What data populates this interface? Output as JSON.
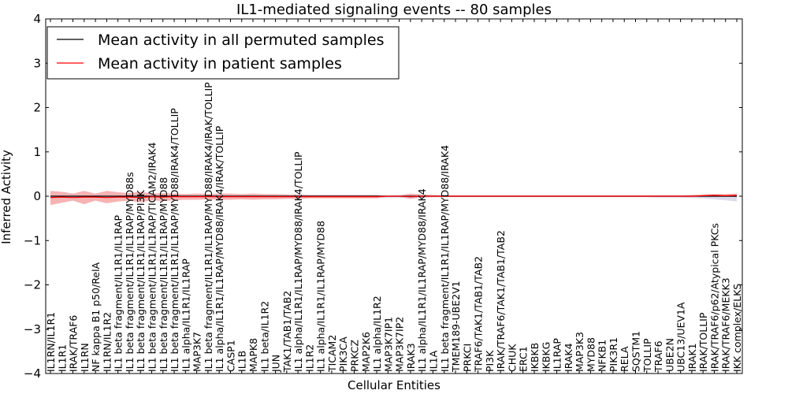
{
  "chart_data": {
    "type": "line",
    "title": "IL1-mediated signaling events -- 80 samples",
    "xlabel": "Cellular Entities",
    "ylabel": "Inferred Activity",
    "ylim": [
      -4,
      4
    ],
    "yticks": [
      -4,
      -3,
      -2,
      -1,
      0,
      1,
      2,
      3,
      4
    ],
    "ytick_labels": [
      "−4",
      "−3",
      "−2",
      "−1",
      "0",
      "1",
      "2",
      "3",
      "4"
    ],
    "legend_position": "top-left",
    "categories": [
      "IL1RN/IL1R1",
      "IL1R1",
      "IRAK/TRAF6",
      "IL1RN",
      "NF kappa B1 p50/RelA",
      "IL1RN/IL1R2",
      "IL1 beta fragment/IL1R1/IL1RAP",
      "IL1 beta fragment/IL1R1/IL1RAP/MYD88s",
      "IL1 beta fragment/IL1R1/IL1RAP/PI3K",
      "IL1 beta fragment/IL1R1/IL1RAP/TICAM2/IRAK4",
      "IL1 beta fragment/IL1R1/IL1RAP/MYD88",
      "IL1 beta fragment/IL1R1/IL1RAP/MYD88/IRAK4/TOLLIP",
      "IL1 alpha/IL1R1/IL1RAP",
      "MAP3K7",
      "IL1 beta fragment/IL1R1/IL1RAP/MYD88/IRAK4/IRAK/TOLLIP",
      "IL1 alpha/IL1R1/IL1RAP/MYD88/IRAK4/IRAK/TOLLIP",
      "CASP1",
      "IL1B",
      "MAPK8",
      "IL1 beta/IL1R2",
      "JUN",
      "TAK1/TAB1/TAB2",
      "IL1 alpha/IL1R1/IL1RAP/MYD88/IRAK4/TOLLIP",
      "IL1R2",
      "IL1 alpha/IL1R1/IL1RAP/MYD88",
      "TICAM2",
      "PIK3CA",
      "PRKCZ",
      "MAP2K6",
      "IL1 alpha/IL1R2",
      "MAP3K7IP1",
      "MAP3K7IP2",
      "IRAK3",
      "IL1 alpha/IL1R1/IL1RAP/MYD88/IRAK4",
      "IL1A",
      "IL1 beta fragment/IL1R1/IL1RAP/MYD88/IRAK4",
      "TMEM189-UBE2V1",
      "PRKCI",
      "TRAF6/TAK1/TAB1/TAB2",
      "PI3K",
      "IRAK/TRAF6/TAK1/TAB1/TAB2",
      "CHUK",
      "ERC1",
      "IKBKB",
      "IKBKG",
      "IL1RAP",
      "IRAK4",
      "MAP3K3",
      "MYD88",
      "NFKB1",
      "PIK3R1",
      "RELA",
      "SQSTM1",
      "TOLLIP",
      "TRAF6",
      "UBE2N",
      "UBC13/UEV1A",
      "IRAK1",
      "IRAK/TOLLIP",
      "IRAK/TRAF6/p62/Atypical PKCs",
      "IRAK/TRAF6/MEKK3",
      "IKK complex/ELKS"
    ],
    "series": [
      {
        "name": "Mean activity in all permuted samples",
        "color": "#000000",
        "values": [
          0.0,
          0.0,
          0.0,
          0.0,
          0.0,
          0.0,
          0.0,
          0.0,
          0.0,
          0.0,
          0.0,
          0.0,
          0.0,
          0.0,
          0.0,
          0.0,
          0.0,
          0.0,
          0.0,
          0.0,
          0.0,
          0.0,
          0.0,
          0.0,
          0.0,
          0.0,
          0.0,
          0.0,
          0.0,
          0.0,
          0.0,
          0.0,
          0.0,
          0.0,
          0.0,
          0.0,
          0.0,
          0.0,
          0.0,
          0.0,
          0.0,
          0.0,
          0.0,
          0.0,
          0.0,
          0.0,
          0.0,
          0.0,
          0.0,
          0.0,
          0.0,
          0.0,
          0.0,
          0.0,
          0.0,
          0.0,
          0.0,
          0.0,
          0.0,
          0.0,
          0.0,
          0.0
        ],
        "band_color": "#b8b8d8",
        "band_low": [
          -0.02,
          -0.02,
          -0.02,
          -0.02,
          -0.02,
          -0.02,
          -0.02,
          -0.02,
          -0.02,
          -0.02,
          -0.02,
          -0.02,
          -0.02,
          -0.02,
          -0.02,
          -0.02,
          -0.02,
          -0.02,
          -0.02,
          -0.02,
          -0.02,
          -0.02,
          -0.02,
          -0.02,
          -0.02,
          -0.02,
          -0.02,
          -0.02,
          -0.02,
          -0.02,
          -0.03,
          -0.03,
          -0.05,
          -0.03,
          -0.02,
          -0.02,
          -0.02,
          -0.02,
          -0.02,
          -0.02,
          -0.02,
          -0.02,
          -0.02,
          -0.02,
          -0.02,
          -0.02,
          -0.02,
          -0.02,
          -0.02,
          -0.02,
          -0.02,
          -0.02,
          -0.02,
          -0.02,
          -0.03,
          -0.03,
          -0.03,
          -0.04,
          -0.05,
          -0.07,
          -0.09,
          -0.12
        ],
        "band_high": [
          0.02,
          0.02,
          0.02,
          0.02,
          0.02,
          0.02,
          0.02,
          0.02,
          0.02,
          0.02,
          0.02,
          0.02,
          0.02,
          0.02,
          0.02,
          0.02,
          0.02,
          0.02,
          0.02,
          0.02,
          0.02,
          0.02,
          0.02,
          0.02,
          0.02,
          0.02,
          0.02,
          0.02,
          0.02,
          0.02,
          0.02,
          0.02,
          0.02,
          0.02,
          0.02,
          0.02,
          0.02,
          0.02,
          0.02,
          0.02,
          0.02,
          0.02,
          0.02,
          0.02,
          0.02,
          0.02,
          0.02,
          0.02,
          0.02,
          0.02,
          0.02,
          0.02,
          0.02,
          0.02,
          0.02,
          0.02,
          0.02,
          0.02,
          0.02,
          0.02,
          0.02,
          0.02
        ]
      },
      {
        "name": "Mean activity in patient samples",
        "color": "#ff0000",
        "values": [
          -0.03,
          -0.02,
          -0.03,
          -0.02,
          -0.02,
          -0.03,
          -0.02,
          -0.02,
          -0.03,
          -0.01,
          -0.02,
          -0.01,
          -0.01,
          -0.01,
          -0.01,
          -0.01,
          -0.01,
          -0.01,
          -0.01,
          -0.01,
          -0.01,
          -0.01,
          -0.01,
          -0.01,
          -0.01,
          -0.01,
          -0.01,
          -0.01,
          -0.01,
          -0.01,
          0.0,
          0.0,
          -0.01,
          0.0,
          0.0,
          0.0,
          0.0,
          0.0,
          0.0,
          0.0,
          0.0,
          0.0,
          0.0,
          0.0,
          0.0,
          0.0,
          0.0,
          0.0,
          0.0,
          0.0,
          0.0,
          0.0,
          0.0,
          0.0,
          0.0,
          0.0,
          0.0,
          0.0,
          0.01,
          0.02,
          0.01,
          0.02
        ],
        "band_color": "#f08080",
        "band_low": [
          -0.2,
          -0.15,
          -0.1,
          -0.18,
          -0.1,
          -0.16,
          -0.12,
          -0.1,
          -0.14,
          -0.09,
          -0.11,
          -0.09,
          -0.08,
          -0.08,
          -0.07,
          -0.08,
          -0.08,
          -0.07,
          -0.08,
          -0.07,
          -0.07,
          -0.06,
          -0.06,
          -0.05,
          -0.05,
          -0.05,
          -0.05,
          -0.05,
          -0.05,
          -0.05,
          -0.02,
          -0.02,
          -0.06,
          -0.03,
          -0.02,
          -0.02,
          -0.02,
          -0.02,
          -0.02,
          -0.02,
          -0.02,
          -0.02,
          -0.02,
          -0.02,
          -0.02,
          -0.02,
          -0.02,
          -0.02,
          -0.02,
          -0.02,
          -0.02,
          -0.02,
          -0.02,
          -0.02,
          -0.02,
          -0.02,
          -0.02,
          -0.02,
          -0.01,
          0.0,
          -0.01,
          -0.02
        ],
        "band_high": [
          0.12,
          0.1,
          0.06,
          0.12,
          0.06,
          0.12,
          0.09,
          0.07,
          0.1,
          0.06,
          0.07,
          0.06,
          0.05,
          0.06,
          0.05,
          0.06,
          0.06,
          0.05,
          0.06,
          0.05,
          0.05,
          0.04,
          0.04,
          0.03,
          0.03,
          0.03,
          0.03,
          0.03,
          0.03,
          0.03,
          0.01,
          0.02,
          0.06,
          0.04,
          0.03,
          0.02,
          0.02,
          0.02,
          0.02,
          0.02,
          0.02,
          0.02,
          0.02,
          0.02,
          0.02,
          0.02,
          0.02,
          0.02,
          0.02,
          0.02,
          0.02,
          0.02,
          0.02,
          0.02,
          0.02,
          0.02,
          0.02,
          0.03,
          0.04,
          0.05,
          0.05,
          0.06
        ]
      }
    ]
  }
}
